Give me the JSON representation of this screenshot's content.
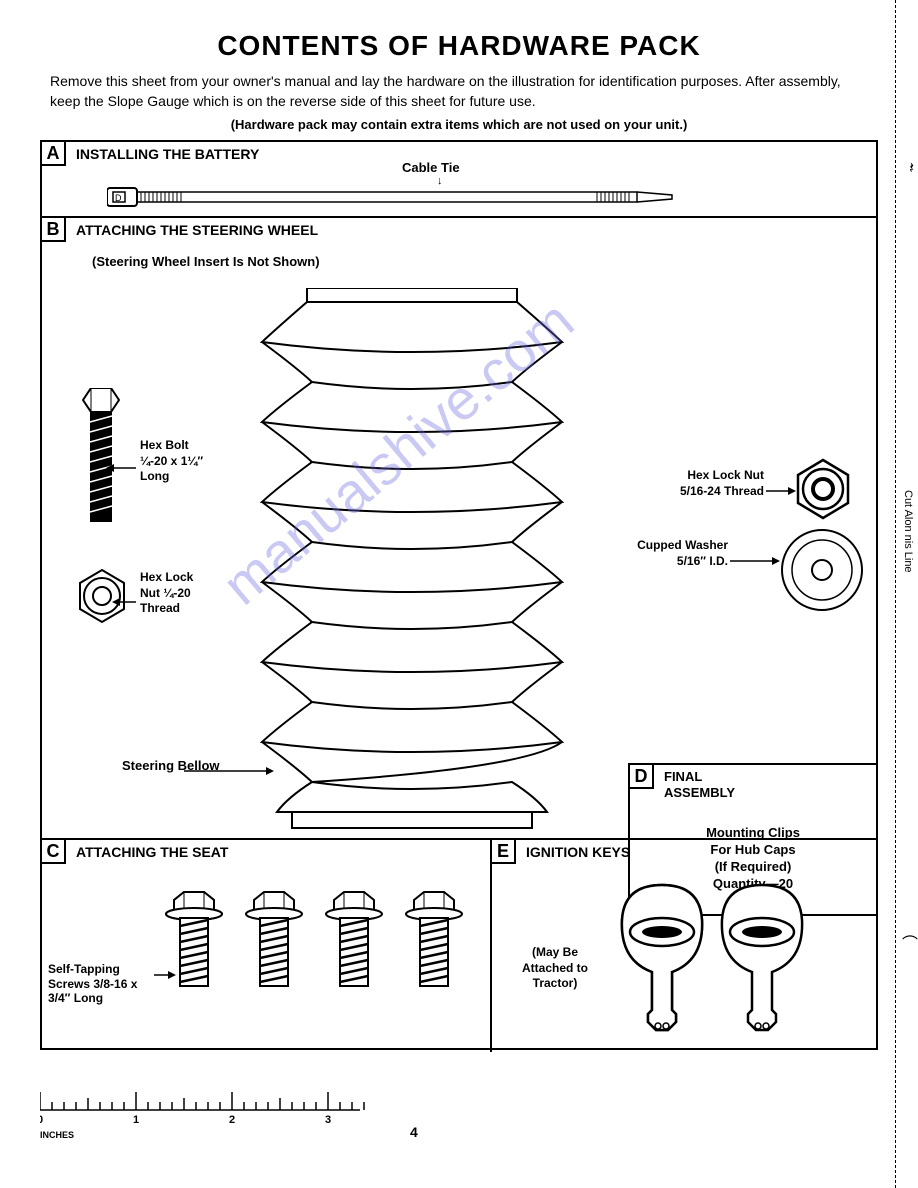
{
  "title": "CONTENTS OF HARDWARE PACK",
  "intro": "Remove this sheet from your owner's manual and lay the hardware on the illustration for identification purposes. After assembly, keep the Slope Gauge which is on the reverse side of this sheet for future use.",
  "note": "(Hardware pack may contain extra items which are not used on your unit.)",
  "sections": {
    "a": {
      "letter": "A",
      "title": "INSTALLING THE BATTERY",
      "cable_tie_label": "Cable Tie"
    },
    "b": {
      "letter": "B",
      "title": "ATTACHING THE STEERING WHEEL",
      "sub_note": "(Steering Wheel Insert Is Not Shown)",
      "hex_bolt": "Hex Bolt ¼-20 x 1¼″ Long",
      "hex_lock_nut": "Hex Lock Nut ¼-20 Thread",
      "hex_lock_nut_r": "Hex Lock Nut 5/16-24 Thread",
      "cupped_washer": "Cupped Washer 5/16″ I.D.",
      "steering_bellow": "Steering Bellow"
    },
    "c": {
      "letter": "C",
      "title": "ATTACHING THE SEAT",
      "screw_label": "Self-Tapping Screws 3/8-16 x 3/4″ Long"
    },
    "d": {
      "letter": "D",
      "title": "FINAL ASSEMBLY",
      "body": "Mounting Clips For Hub Caps (If Required) Quantity—20"
    },
    "e": {
      "letter": "E",
      "title": "IGNITION KEYS",
      "note": "(May Be Attached to Tractor)"
    }
  },
  "ruler": {
    "label": "INCHES",
    "ticks": [
      "0",
      "1",
      "2",
      "3"
    ],
    "tick_spacing_px": 96,
    "minor_per_major": 8
  },
  "page_number": "4",
  "cut_line_text": "Cut Alon    nis Line",
  "watermark": "manualshive.com",
  "colors": {
    "background": "#ffffff",
    "text": "#000000",
    "border": "#000000",
    "watermark": "rgba(100,100,220,0.35)"
  },
  "styles": {
    "title_fontsize": 28,
    "section_title_fontsize": 14,
    "label_fontsize": 12,
    "border_width": 2,
    "bellow_ridges": 10,
    "screw_count": 4
  }
}
